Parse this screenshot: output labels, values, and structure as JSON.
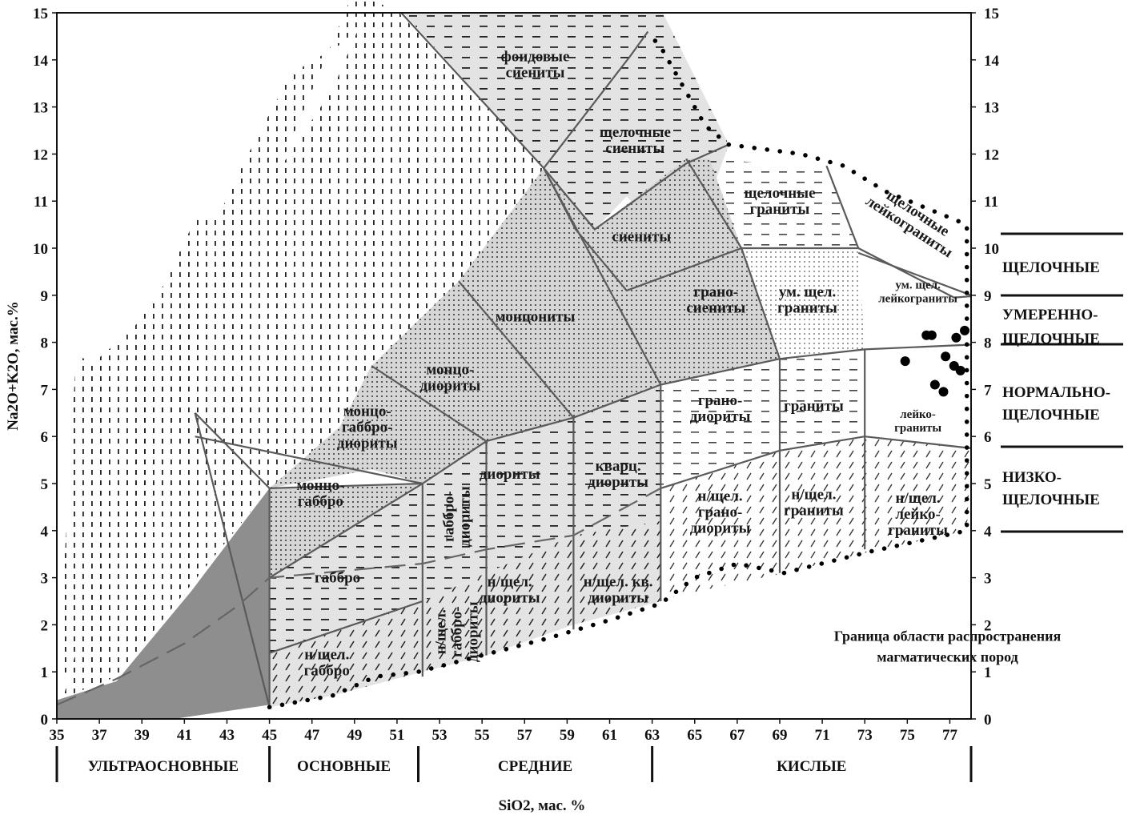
{
  "chart_data": {
    "type": "classification-diagram",
    "xlabel": "SiO2, мас. %",
    "ylabel": "Na2O+K2O, мас.%",
    "xlim": [
      35,
      78
    ],
    "ylim": [
      0,
      15
    ],
    "x_ticks": [
      35,
      37,
      39,
      41,
      43,
      45,
      47,
      49,
      51,
      53,
      55,
      57,
      59,
      61,
      63,
      65,
      67,
      69,
      71,
      73,
      75,
      77
    ],
    "y_ticks": [
      0,
      1,
      2,
      3,
      4,
      5,
      6,
      7,
      8,
      9,
      10,
      11,
      12,
      13,
      14,
      15
    ],
    "fields": [
      {
        "name": "фоидовые сиениты",
        "lines": [
          "фоидовые",
          "сиениты"
        ],
        "x": 57.5,
        "y": 13.9
      },
      {
        "name": "щелочные сиениты",
        "lines": [
          "щелочные",
          "сиениты"
        ],
        "x": 62.2,
        "y": 12.3
      },
      {
        "name": "сиениты",
        "lines": [
          "сиениты"
        ],
        "x": 62.5,
        "y": 10.25
      },
      {
        "name": "монцониты",
        "lines": [
          "монцониты"
        ],
        "x": 57.5,
        "y": 8.55
      },
      {
        "name": "монцо-диориты",
        "lines": [
          "монцо-",
          "диориты"
        ],
        "x": 53.5,
        "y": 7.25
      },
      {
        "name": "монцо-габбро-диориты",
        "lines": [
          "монцо-",
          "габбро-",
          "диориты"
        ],
        "x": 49.6,
        "y": 6.2
      },
      {
        "name": "монцо-габбро",
        "lines": [
          "монцо-",
          "габбро"
        ],
        "x": 47.4,
        "y": 4.8
      },
      {
        "name": "габбро",
        "lines": [
          "габбро"
        ],
        "x": 48.2,
        "y": 3.0
      },
      {
        "name": "н/щел. габбро",
        "lines": [
          "н/щел.",
          "габбро"
        ],
        "x": 47.7,
        "y": 1.2
      },
      {
        "name": "габбро-диориты",
        "lines": [
          "габбро-",
          "диориты"
        ],
        "x": 53.8,
        "y": 4.3,
        "rotate": -90
      },
      {
        "name": "н/щел. габбро-диориты",
        "lines": [
          "н/щел.",
          "габбро-",
          "диориты"
        ],
        "x": 53.8,
        "y": 1.85,
        "rotate": -90
      },
      {
        "name": "диориты",
        "lines": [
          "диориты"
        ],
        "x": 56.3,
        "y": 5.2
      },
      {
        "name": "кварц. диориты",
        "lines": [
          "кварц.",
          "диориты"
        ],
        "x": 61.4,
        "y": 5.2
      },
      {
        "name": "н/щел. диориты",
        "lines": [
          "н/щел.",
          "диориты"
        ],
        "x": 56.3,
        "y": 2.75
      },
      {
        "name": "н/щел. кв. диориты",
        "lines": [
          "н/щел. кв.",
          "диориты"
        ],
        "x": 61.4,
        "y": 2.75
      },
      {
        "name": "граносиениты",
        "lines": [
          "грано-",
          "сиениты"
        ],
        "x": 66.0,
        "y": 8.9
      },
      {
        "name": "щелочные граниты",
        "lines": [
          "щелочные",
          "граниты"
        ],
        "x": 69.0,
        "y": 11.0
      },
      {
        "name": "щелочные лейкограниты",
        "lines": [
          "щелочные",
          "лейкограниты"
        ],
        "x": 75.3,
        "y": 10.6,
        "rotate": 33
      },
      {
        "name": "ум. щел. граниты",
        "lines": [
          "ум. щел.",
          "граниты"
        ],
        "x": 70.3,
        "y": 8.9
      },
      {
        "name": "ум. щел. лейкограниты",
        "lines": [
          "ум. щел.",
          "лейкограниты"
        ],
        "x": 75.5,
        "y": 9.1,
        "small": true
      },
      {
        "name": "гранодиориты",
        "lines": [
          "грано-",
          "диориты"
        ],
        "x": 66.2,
        "y": 6.6
      },
      {
        "name": "граниты",
        "lines": [
          "граниты"
        ],
        "x": 70.6,
        "y": 6.65
      },
      {
        "name": "лейкограниты",
        "lines": [
          "лейко-",
          "граниты"
        ],
        "x": 75.5,
        "y": 6.35,
        "small": true
      },
      {
        "name": "н/щел. гранодиориты",
        "lines": [
          "н/щел.",
          "грано-",
          "диориты"
        ],
        "x": 66.2,
        "y": 4.4
      },
      {
        "name": "н/щел. граниты",
        "lines": [
          "н/щел.",
          "граниты"
        ],
        "x": 70.6,
        "y": 4.6
      },
      {
        "name": "н/щел. лейкограниты",
        "lines": [
          "н/щел.",
          "лейко-",
          "граниты"
        ],
        "x": 75.5,
        "y": 4.35
      }
    ],
    "annotation": {
      "lines": [
        "Граница области распространения",
        "магматических пород"
      ],
      "x": 73.5,
      "y": 1.45
    },
    "alkalinity_classes": [
      {
        "lines": [
          "ЩЕЛОЧНЫЕ"
        ]
      },
      {
        "lines": [
          "УМЕРЕННО-",
          "ЩЕЛОЧНЫЕ"
        ]
      },
      {
        "lines": [
          "НОРМАЛЬНО-",
          "ЩЕЛОЧНЫЕ"
        ]
      },
      {
        "lines": [
          "НИЗКО-",
          "ЩЕЛОЧНЫЕ"
        ]
      }
    ],
    "acidity_classes": [
      {
        "label": "УЛЬТРАОСНОВНЫЕ",
        "from": 35,
        "to": 45
      },
      {
        "label": "ОСНОВНЫЕ",
        "from": 45,
        "to": 52
      },
      {
        "label": "СРЕДНИЕ",
        "from": 52,
        "to": 63
      },
      {
        "label": "КИСЛЫЕ",
        "from": 63,
        "to": 78
      }
    ],
    "points": [
      {
        "x": 74.9,
        "y": 7.6
      },
      {
        "x": 75.9,
        "y": 8.15
      },
      {
        "x": 76.15,
        "y": 8.15
      },
      {
        "x": 76.3,
        "y": 7.1
      },
      {
        "x": 76.7,
        "y": 6.95
      },
      {
        "x": 76.8,
        "y": 7.7
      },
      {
        "x": 77.2,
        "y": 7.5
      },
      {
        "x": 77.3,
        "y": 8.1
      },
      {
        "x": 77.5,
        "y": 7.4
      },
      {
        "x": 77.7,
        "y": 8.25
      }
    ],
    "colors": {
      "background": "#ffffff",
      "light_fill": "#e4e4e4",
      "mid_fill": "#d0d0d0",
      "dark_fill": "#8e8e8e",
      "line": "#5a5a5a",
      "ink": "#111111"
    }
  }
}
